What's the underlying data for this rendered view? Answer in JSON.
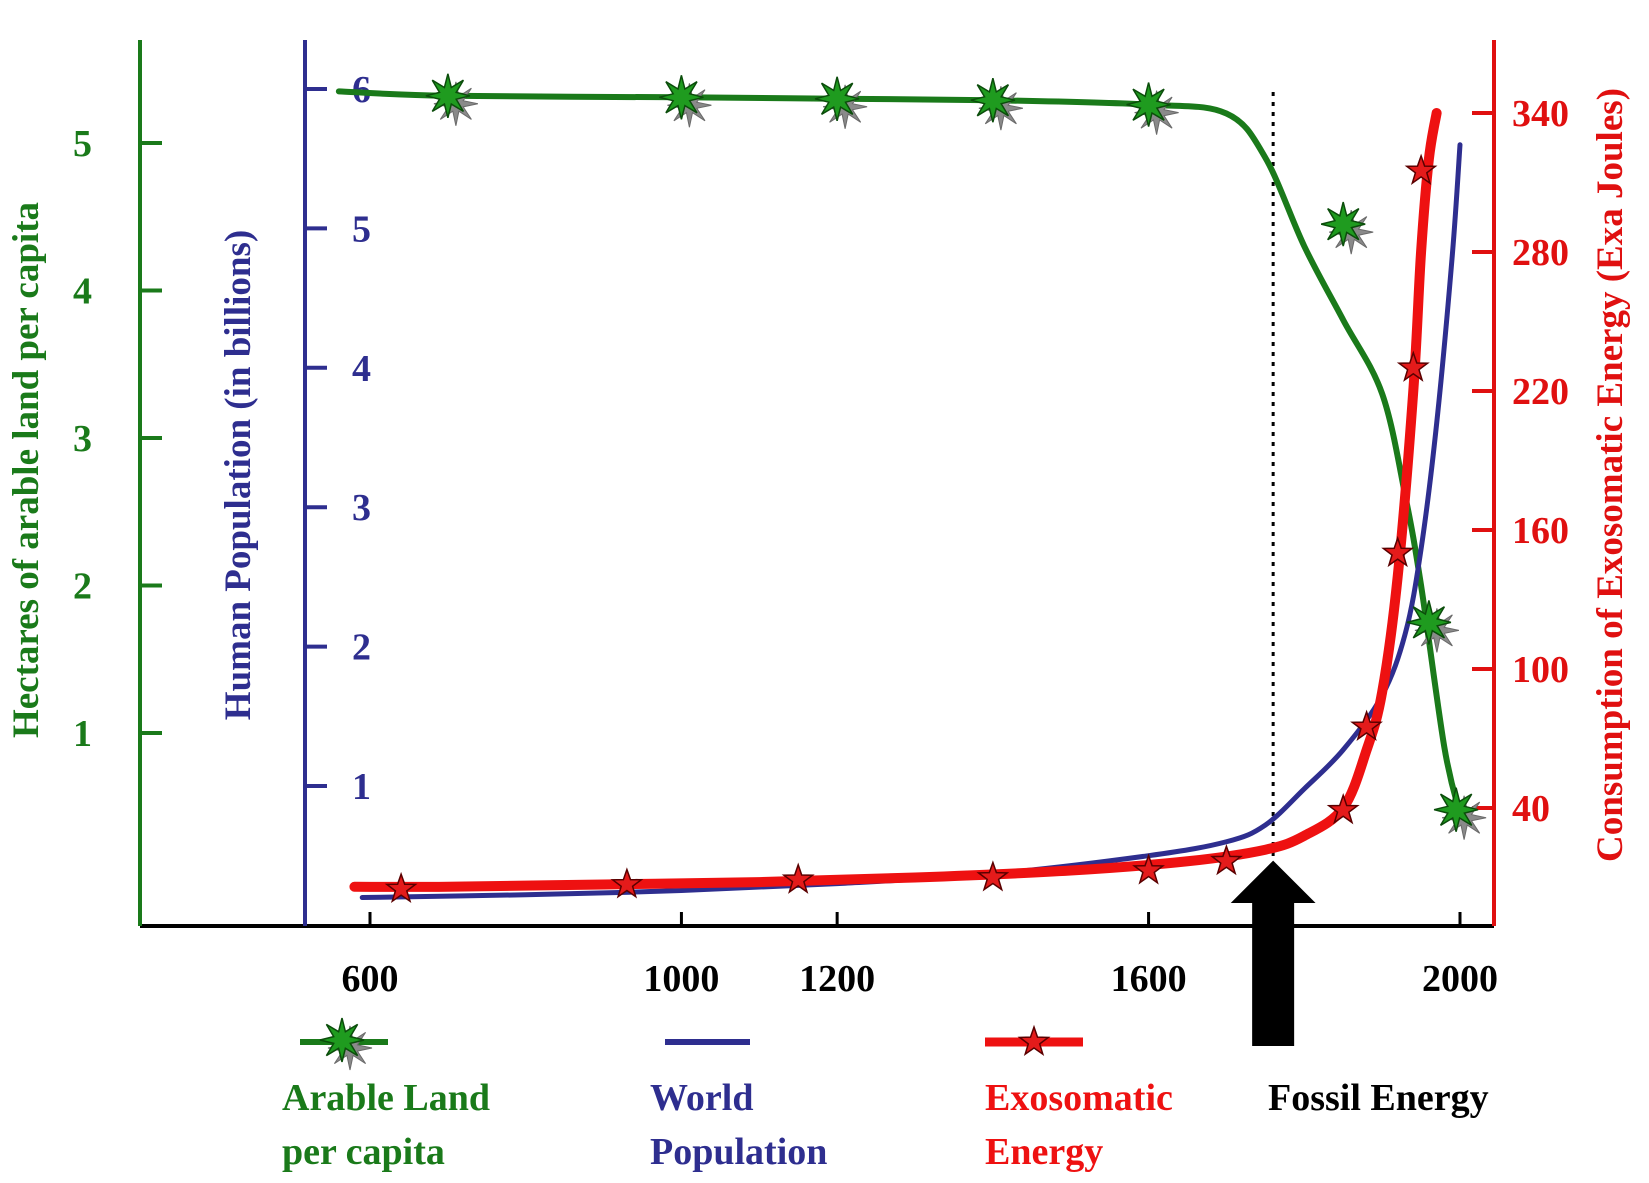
{
  "chart_data": {
    "type": "line",
    "x_axis": {
      "ticks": [
        600,
        1000,
        1200,
        1600,
        2000
      ],
      "range": [
        560,
        2030
      ]
    },
    "axes": {
      "land": {
        "label": "Hectares of arable land per capita",
        "ticks": [
          1,
          2,
          3,
          4,
          5
        ],
        "range": [
          0,
          5.5
        ],
        "color": "#1a7a1a"
      },
      "population": {
        "label": "Human Population (in billions)",
        "ticks": [
          1,
          2,
          3,
          4,
          5,
          6
        ],
        "range": [
          0,
          6.2
        ],
        "color": "#2e2e8f"
      },
      "energy": {
        "label": "Consumption of Exosomatic Energy (Exa Joules)",
        "ticks": [
          40,
          100,
          160,
          220,
          280,
          340
        ],
        "range": [
          -10,
          358
        ],
        "color": "#e01010"
      }
    },
    "series": [
      {
        "name": "Arable Land per capita",
        "axis": "land",
        "color": "#1a7a1a",
        "marker": "star-burst",
        "x": [
          560,
          700,
          1000,
          1200,
          1400,
          1600,
          1700,
          1750,
          1800,
          1850,
          1900,
          1930,
          1950,
          1980,
          2000
        ],
        "y": [
          5.35,
          5.32,
          5.31,
          5.3,
          5.29,
          5.26,
          5.2,
          4.9,
          4.3,
          3.8,
          3.3,
          2.6,
          2.0,
          0.9,
          0.45
        ],
        "markers_x": [
          700,
          1000,
          1200,
          1400,
          1600,
          1850,
          1960,
          1995
        ],
        "markers_y": [
          5.32,
          5.31,
          5.3,
          5.29,
          5.26,
          4.45,
          1.75,
          0.48
        ]
      },
      {
        "name": "World Population",
        "axis": "population",
        "color": "#2e2e8f",
        "marker": "none",
        "x": [
          590,
          800,
          1000,
          1200,
          1400,
          1600,
          1700,
          1750,
          1800,
          1850,
          1900,
          1930,
          1950,
          1970,
          1990,
          2000
        ],
        "y": [
          0.2,
          0.22,
          0.25,
          0.3,
          0.37,
          0.5,
          0.6,
          0.72,
          0.98,
          1.26,
          1.65,
          2.1,
          2.7,
          3.6,
          4.8,
          5.6
        ]
      },
      {
        "name": "Exosomatic Energy",
        "axis": "energy",
        "color": "#ee1111",
        "marker": "star",
        "x": [
          580,
          700,
          900,
          1100,
          1300,
          1500,
          1650,
          1750,
          1800,
          1850,
          1880,
          1900,
          1920,
          1940,
          1950,
          1960,
          1970
        ],
        "y": [
          6,
          6,
          7,
          8,
          10,
          13,
          17,
          22,
          28,
          40,
          65,
          90,
          140,
          220,
          280,
          320,
          340
        ],
        "markers_x": [
          640,
          930,
          1150,
          1400,
          1600,
          1700,
          1850,
          1880,
          1920,
          1940,
          1950
        ],
        "markers_y": [
          5,
          7,
          9,
          10,
          13,
          17,
          39,
          75,
          150,
          230,
          315
        ]
      }
    ],
    "annotations": {
      "marker_year": 1760,
      "arrow_label": "Fossil Energy"
    },
    "legend": {
      "position": "bottom",
      "items": [
        {
          "series": "Arable Land per capita",
          "line1": "Arable Land",
          "line2": "per capita",
          "color": "#1a7a1a"
        },
        {
          "series": "World Population",
          "line1": "World",
          "line2": "Population",
          "color": "#2e2e8f"
        },
        {
          "series": "Exosomatic Energy",
          "line1": "Exosomatic",
          "line2": "Energy",
          "color": "#ee1111"
        },
        {
          "series": "Fossil Energy",
          "line1": "Fossil Energy",
          "line2": "",
          "color": "#000000"
        }
      ]
    }
  }
}
